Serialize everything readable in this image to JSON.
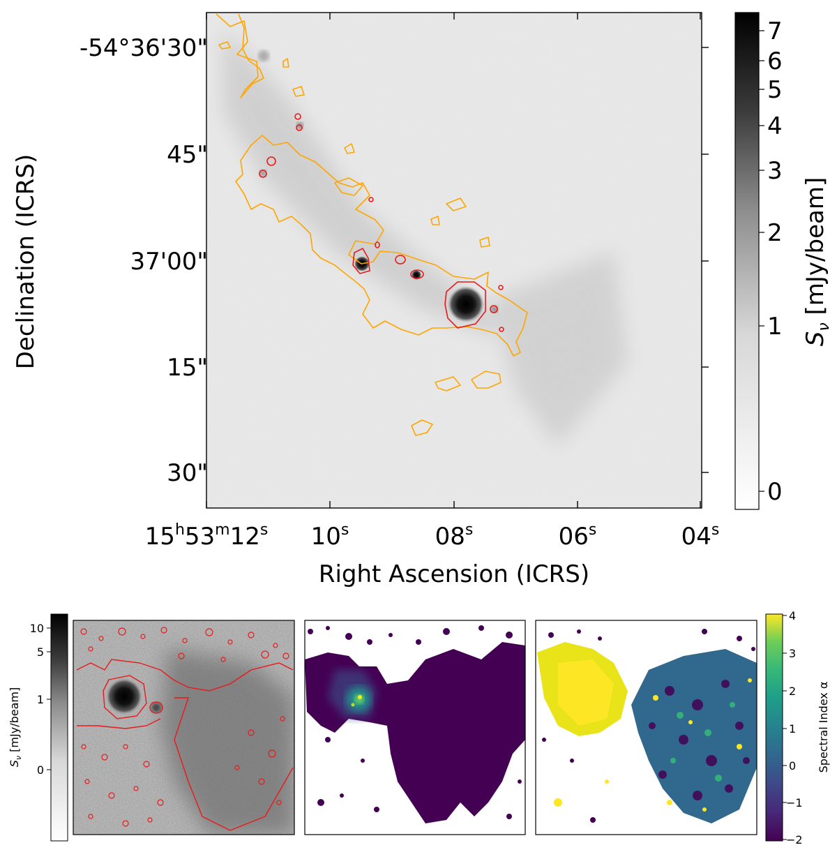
{
  "main_panel": {
    "ra_ticks": [
      {
        "h": "15",
        "hu": "h",
        "m": "53",
        "mu": "m",
        "s": "12",
        "su": "s"
      },
      {
        "s": "10",
        "su": "s"
      },
      {
        "s": "08",
        "su": "s"
      },
      {
        "s": "06",
        "su": "s"
      },
      {
        "s": "04",
        "su": "s"
      }
    ],
    "dec_ticks": [
      "-54°36'30\"",
      "45\"",
      "37'00\"",
      "15\"",
      "30\""
    ],
    "xlabel": "Right Ascension (ICRS)",
    "ylabel": "Declination (ICRS)",
    "colorbar": {
      "ticks": [
        "7",
        "6",
        "5",
        "4",
        "3",
        "2",
        "1",
        "0"
      ],
      "label_main": "S",
      "label_sub": "ν",
      "label_rest": " [mJy/beam]"
    },
    "contour_colors": {
      "orange": "#ffa500",
      "red": "#e8191b"
    }
  },
  "bottom_left_colorbar": {
    "ticks": [
      "10",
      "5",
      "1",
      "0"
    ],
    "label_main": "S",
    "label_sub": "ν",
    "label_rest": " [mJy/beam]"
  },
  "bottom_right_colorbar": {
    "ticks": [
      "4",
      "3",
      "2",
      "1",
      "0",
      "−1",
      "−2"
    ],
    "label": "Spectral Index α"
  }
}
